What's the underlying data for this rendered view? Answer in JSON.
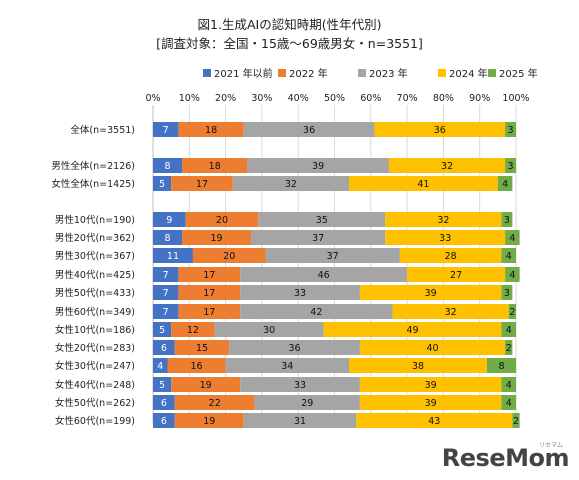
{
  "chart_data": {
    "type": "bar",
    "orientation": "horizontal",
    "stacked": "percent",
    "title": "図1.生成AIの認知時期(性年代別)",
    "subtitle": "[調査対象：全国・15歳～69歳男女・n=3551]",
    "xlim": [
      0,
      100
    ],
    "xticks": [
      "0%",
      "10%",
      "20%",
      "30%",
      "40%",
      "50%",
      "60%",
      "70%",
      "80%",
      "90%",
      "100%"
    ],
    "legend_position": "top",
    "grid": true,
    "categories": [
      "全体(n=3551)",
      "男性全体(n=2126)",
      "女性全体(n=1425)",
      "男性10代(n=190)",
      "男性20代(n=362)",
      "男性30代(n=367)",
      "男性40代(n=425)",
      "男性50代(n=433)",
      "男性60代(n=349)",
      "女性10代(n=186)",
      "女性20代(n=283)",
      "女性30代(n=247)",
      "女性40代(n=248)",
      "女性50代(n=262)",
      "女性60代(n=199)"
    ],
    "series": [
      {
        "name": "2021 年以前",
        "color": "#4472C4",
        "values": [
          7,
          8,
          5,
          9,
          8,
          11,
          7,
          7,
          7,
          5,
          6,
          4,
          5,
          6,
          6
        ]
      },
      {
        "name": "2022 年",
        "color": "#ED7D31",
        "values": [
          18,
          18,
          17,
          20,
          19,
          20,
          17,
          17,
          17,
          12,
          15,
          16,
          19,
          22,
          19
        ]
      },
      {
        "name": "2023 年",
        "color": "#A5A5A5",
        "values": [
          36,
          39,
          32,
          35,
          37,
          37,
          46,
          33,
          42,
          30,
          36,
          34,
          33,
          29,
          31
        ]
      },
      {
        "name": "2024 年",
        "color": "#FFC000",
        "values": [
          36,
          32,
          41,
          32,
          33,
          28,
          27,
          39,
          32,
          49,
          40,
          38,
          39,
          39,
          43
        ]
      },
      {
        "name": "2025 年",
        "color": "#70AD47",
        "values": [
          3,
          3,
          4,
          3,
          4,
          4,
          4,
          3,
          2,
          4,
          2,
          8,
          4,
          4,
          2
        ]
      }
    ]
  },
  "logo": {
    "text": "ReseMom",
    "sub": "リセマム"
  }
}
